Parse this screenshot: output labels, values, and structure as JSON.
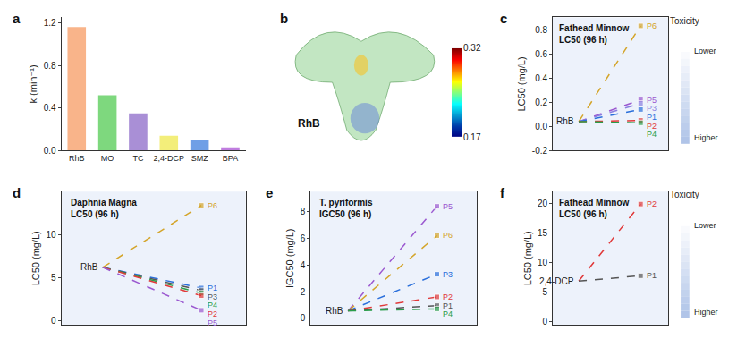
{
  "chart_data": [
    {
      "type": "bar",
      "panel": "a",
      "categories": [
        "RhB",
        "MO",
        "TC",
        "2,4-DCP",
        "SMZ",
        "BPA"
      ],
      "values": [
        1.16,
        0.52,
        0.35,
        0.14,
        0.1,
        0.03
      ],
      "colors": [
        "#f9b48a",
        "#7ed87e",
        "#a98fd6",
        "#f3ee7a",
        "#6f9fe6",
        "#c07ddf"
      ],
      "y_label": "k (min⁻¹)",
      "ylim": [
        0,
        1.25
      ],
      "yticks": [
        {
          "value": 0,
          "label": "0.0"
        },
        0.4,
        0.8,
        1.2
      ]
    },
    {
      "type": "heatmap",
      "panel": "b",
      "title": "RhB",
      "colorbar": {
        "range": [
          0.17,
          0.32
        ],
        "ticks": [
          0.17,
          0.32
        ]
      }
    },
    {
      "type": "line",
      "panel": "c",
      "title": [
        "Fathead Minnow",
        "LC50 (96 h)"
      ],
      "y_label": "LC50 (mg/L)",
      "start": "RhB",
      "tick_labels": "y",
      "ylim": [
        -0.2,
        0.9
      ],
      "yticks": [
        -0.2,
        {
          "value": 0,
          "label": "0.0"
        },
        0.2,
        0.4,
        0.6,
        0.8
      ],
      "line_style": "dash",
      "marker": "square",
      "toxicity": {
        "title": "Toxicity",
        "top": "Lower",
        "bottom": "Higher"
      },
      "series": [
        {
          "name": "P6",
          "color": "#d4a52a",
          "values": [
            0.04,
            0.83
          ]
        },
        {
          "name": "P5",
          "color": "#9b59d0",
          "values": [
            0.04,
            0.22
          ]
        },
        {
          "name": "P3",
          "color": "#8a7fe0",
          "values": [
            0.04,
            0.19
          ]
        },
        {
          "name": "P1",
          "color": "#2a6fdb",
          "values": [
            0.04,
            0.14
          ]
        },
        {
          "name": "P2",
          "color": "#e03a3a",
          "values": [
            0.04,
            0.05
          ]
        },
        {
          "name": "P4",
          "color": "#2a9d4a",
          "values": [
            0.04,
            0.03
          ]
        }
      ]
    },
    {
      "type": "line",
      "panel": "d",
      "title": [
        "Daphnia Magna",
        "LC50 (96 h)"
      ],
      "y_label": "LC50 (mg/L)",
      "start": "RhB",
      "tick_labels": "y",
      "ylim": [
        -0.5,
        15
      ],
      "yticks": [
        0,
        5,
        10
      ],
      "line_style": "dash",
      "marker": "square",
      "series": [
        {
          "name": "P6",
          "color": "#d4a52a",
          "values": [
            6.2,
            13.4
          ]
        },
        {
          "name": "P1",
          "color": "#2a6fdb",
          "values": [
            6.2,
            3.8
          ]
        },
        {
          "name": "P3",
          "color": "#555555",
          "values": [
            6.2,
            3.5
          ]
        },
        {
          "name": "P4",
          "color": "#2a9d4a",
          "values": [
            6.2,
            3.2
          ]
        },
        {
          "name": "P2",
          "color": "#e03a3a",
          "values": [
            6.2,
            2.9
          ]
        },
        {
          "name": "P5",
          "color": "#9b59d0",
          "values": [
            6.2,
            1.2
          ]
        }
      ]
    },
    {
      "type": "line",
      "panel": "e",
      "title": [
        "T. pyriformis",
        "IGC50 (96 h)"
      ],
      "y_label": "IGC50 (mg/L)",
      "start": "RhB",
      "tick_labels": "y",
      "ylim": [
        -0.5,
        9.5
      ],
      "yticks": [
        0,
        2,
        4,
        6,
        8
      ],
      "line_style": "dash",
      "marker": "square",
      "series": [
        {
          "name": "P5",
          "color": "#9b59d0",
          "values": [
            0.55,
            8.4
          ]
        },
        {
          "name": "P6",
          "color": "#d4a52a",
          "values": [
            0.55,
            6.2
          ]
        },
        {
          "name": "P3",
          "color": "#2a6fdb",
          "values": [
            0.55,
            3.3
          ]
        },
        {
          "name": "P2",
          "color": "#e03a3a",
          "values": [
            0.55,
            1.6
          ]
        },
        {
          "name": "P1",
          "color": "#555555",
          "values": [
            0.55,
            0.95
          ]
        },
        {
          "name": "P4",
          "color": "#2a9d4a",
          "values": [
            0.55,
            0.7
          ]
        }
      ]
    },
    {
      "type": "line",
      "panel": "f",
      "title": [
        "Fathead Minnow",
        "LC50 (96 h)"
      ],
      "y_label": "LC50 (mg/L)",
      "start": "2,4-DCP",
      "tick_labels": "y",
      "ylim": [
        -0.5,
        22
      ],
      "yticks": [
        0,
        5,
        10,
        15,
        20
      ],
      "line_style": "dash",
      "marker": "square",
      "toxicity": {
        "title": "Toxicity",
        "top": "Lower",
        "bottom": "Higher"
      },
      "series": [
        {
          "name": "P2",
          "color": "#e03a3a",
          "values": [
            6.9,
            19.9
          ]
        },
        {
          "name": "P1",
          "color": "#555555",
          "values": [
            6.9,
            7.8
          ]
        }
      ]
    }
  ]
}
